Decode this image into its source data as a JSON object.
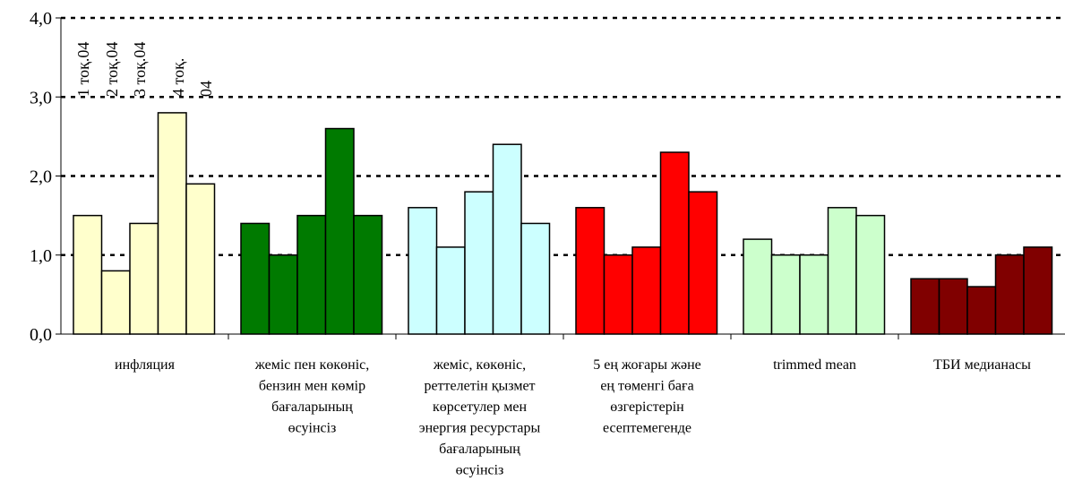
{
  "chart_data": {
    "type": "bar",
    "title": "",
    "xlabel": "",
    "ylabel": "",
    "ylim": [
      0,
      4
    ],
    "yticks": [
      "0,0",
      "1,0",
      "2,0",
      "3,0",
      "4,0"
    ],
    "grid": "horizontal-dotted",
    "legend_placement": "top-left",
    "categories": [
      {
        "lines": [
          "инфляция"
        ],
        "color": "#ffffcc"
      },
      {
        "lines": [
          "жеміс пен көкөніс,",
          "бензин мен көмір",
          "бағаларының",
          "өсуінсіз"
        ],
        "color": "#007a00"
      },
      {
        "lines": [
          "жеміс, көкөніс,",
          "реттелетін қызмет",
          "көрсетулер мен",
          "энергия ресурстары",
          "бағаларының",
          "өсуінсіз"
        ],
        "color": "#ccffff"
      },
      {
        "lines": [
          "5 ең жоғары және",
          "ең төменгі баға",
          "өзгерістерін",
          "есептемегенде"
        ],
        "color": "#ff0000"
      },
      {
        "lines": [
          "trimmed mean"
        ],
        "color": "#ccffcc"
      },
      {
        "lines": [
          "ТБИ медианасы"
        ],
        "color": "#800000"
      }
    ],
    "series": [
      {
        "name": "1 тоқ.04",
        "values": [
          1.5,
          1.4,
          1.6,
          1.6,
          1.2,
          0.7
        ]
      },
      {
        "name": "2 тоқ.04",
        "values": [
          0.8,
          1.0,
          1.1,
          1.0,
          1.0,
          0.7
        ]
      },
      {
        "name": "3 тоқ.04",
        "values": [
          1.4,
          1.5,
          1.8,
          1.1,
          1.0,
          0.6
        ]
      },
      {
        "name": "4 тоқ.",
        "values": [
          2.8,
          2.6,
          2.4,
          2.3,
          1.6,
          1.0
        ]
      },
      {
        "name": "04",
        "values": [
          1.9,
          1.5,
          1.4,
          1.8,
          1.5,
          1.1
        ]
      }
    ]
  }
}
